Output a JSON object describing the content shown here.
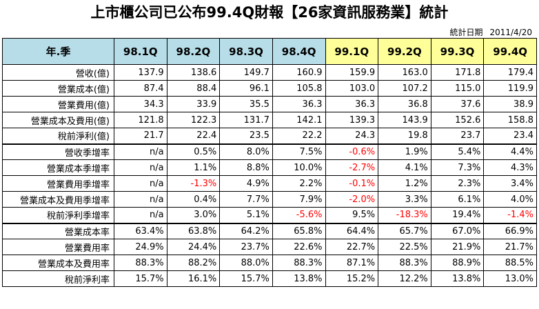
{
  "title": "上市櫃公司已公布99.4Q財報【26家資訊服務業】統計",
  "date_label": "統計日期",
  "date_value": "2011/4/20",
  "table": {
    "corner_label": "年.季",
    "columns": [
      {
        "label": "98.1Q",
        "group": "98"
      },
      {
        "label": "98.2Q",
        "group": "98"
      },
      {
        "label": "98.3Q",
        "group": "98"
      },
      {
        "label": "98.4Q",
        "group": "98"
      },
      {
        "label": "99.1Q",
        "group": "99"
      },
      {
        "label": "99.2Q",
        "group": "99"
      },
      {
        "label": "99.3Q",
        "group": "99"
      },
      {
        "label": "99.4Q",
        "group": "99"
      }
    ],
    "header_colors": {
      "98": "#b7dde8",
      "99": "#ffff99"
    },
    "negative_color": "#ff0000",
    "rows": [
      {
        "label": "營收(億)",
        "values": [
          "137.9",
          "138.6",
          "149.7",
          "160.9",
          "159.9",
          "163.0",
          "171.8",
          "179.4"
        ]
      },
      {
        "label": "營業成本(億)",
        "values": [
          "87.4",
          "88.4",
          "96.1",
          "105.8",
          "103.0",
          "107.2",
          "115.0",
          "119.9"
        ]
      },
      {
        "label": "營業費用(億)",
        "values": [
          "34.3",
          "33.9",
          "35.5",
          "36.3",
          "36.3",
          "36.8",
          "37.6",
          "38.9"
        ]
      },
      {
        "label": "營業成本及費用(億)",
        "values": [
          "121.8",
          "122.3",
          "131.7",
          "142.1",
          "139.3",
          "143.9",
          "152.6",
          "158.8"
        ]
      },
      {
        "label": "稅前淨利(億)",
        "values": [
          "21.7",
          "22.4",
          "23.5",
          "22.2",
          "24.3",
          "19.8",
          "23.7",
          "23.4"
        ]
      },
      {
        "label": "營收季增率",
        "values": [
          "n/a",
          "0.5%",
          "8.0%",
          "7.5%",
          "-0.6%",
          "1.9%",
          "5.4%",
          "4.4%"
        ],
        "sep": true
      },
      {
        "label": "營業成本季增率",
        "values": [
          "n/a",
          "1.1%",
          "8.8%",
          "10.0%",
          "-2.7%",
          "4.1%",
          "7.3%",
          "4.3%"
        ]
      },
      {
        "label": "營業費用季增率",
        "values": [
          "n/a",
          "-1.3%",
          "4.9%",
          "2.2%",
          "-0.1%",
          "1.2%",
          "2.3%",
          "3.4%"
        ]
      },
      {
        "label": "營業成本及費用季增率",
        "values": [
          "n/a",
          "0.4%",
          "7.7%",
          "7.9%",
          "-2.0%",
          "3.3%",
          "6.1%",
          "4.0%"
        ]
      },
      {
        "label": "稅前淨利季增率",
        "values": [
          "n/a",
          "3.0%",
          "5.1%",
          "-5.6%",
          "9.5%",
          "-18.3%",
          "19.4%",
          "-1.4%"
        ]
      },
      {
        "label": "營業成本率",
        "values": [
          "63.4%",
          "63.8%",
          "64.2%",
          "65.8%",
          "64.4%",
          "65.7%",
          "67.0%",
          "66.9%"
        ],
        "sep": true
      },
      {
        "label": "營業費用率",
        "values": [
          "24.9%",
          "24.4%",
          "23.7%",
          "22.6%",
          "22.7%",
          "22.5%",
          "21.9%",
          "21.7%"
        ]
      },
      {
        "label": "營業成本及費用率",
        "values": [
          "88.3%",
          "88.2%",
          "88.0%",
          "88.3%",
          "87.1%",
          "88.3%",
          "88.9%",
          "88.5%"
        ]
      },
      {
        "label": "稅前淨利率",
        "values": [
          "15.7%",
          "16.1%",
          "15.7%",
          "13.8%",
          "15.2%",
          "12.2%",
          "13.8%",
          "13.0%"
        ]
      }
    ]
  }
}
